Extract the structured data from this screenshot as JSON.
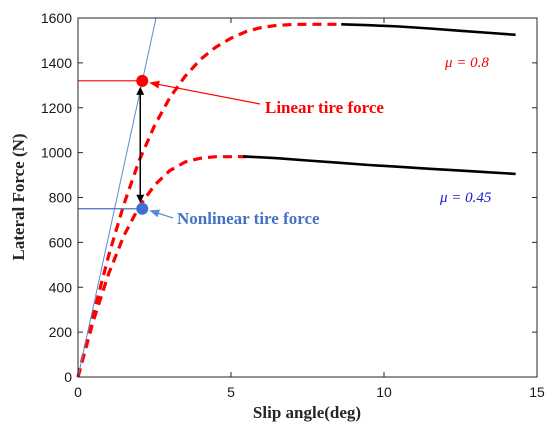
{
  "chart_data": {
    "type": "line",
    "title": "",
    "xlabel": "Slip angle(deg)",
    "ylabel": "Lateral Force (N)",
    "xlim": [
      0,
      15
    ],
    "ylim": [
      0,
      1600
    ],
    "xticks": [
      0,
      5,
      10,
      15
    ],
    "yticks": [
      0,
      200,
      400,
      600,
      800,
      1000,
      1200,
      1400,
      1600
    ],
    "grid": false,
    "series": [
      {
        "name": "μ = 0.8",
        "color": "#ff0000",
        "style": "dashed",
        "x": [
          0,
          0.5,
          1,
          1.5,
          2,
          2.5,
          3,
          3.5,
          4,
          4.5,
          5,
          5.5,
          6,
          6.5,
          7,
          7.5,
          8,
          8.6
        ],
        "y": [
          0,
          280,
          540,
          770,
          965,
          1120,
          1245,
          1340,
          1415,
          1470,
          1510,
          1540,
          1558,
          1567,
          1571,
          1572,
          1572,
          1572
        ]
      },
      {
        "name": "",
        "color": "#000000",
        "style": "solid",
        "x": [
          8.6,
          9.5,
          10.5,
          11.5,
          12.5,
          13.5,
          14.3
        ],
        "y": [
          1572,
          1568,
          1562,
          1553,
          1543,
          1533,
          1525
        ]
      },
      {
        "name": "μ = 0.45",
        "color": "#ff0000",
        "style": "dashed",
        "x": [
          0,
          0.5,
          1,
          1.5,
          2,
          2.5,
          3,
          3.5,
          4,
          4.5,
          5,
          5.5
        ],
        "y": [
          0,
          250,
          460,
          630,
          760,
          855,
          920,
          958,
          975,
          982,
          982,
          982
        ]
      },
      {
        "name": "",
        "color": "#000000",
        "style": "solid",
        "x": [
          5.4,
          6.5,
          7.5,
          8.5,
          9.5,
          10.5,
          11.5,
          12.5,
          13.5,
          14.3
        ],
        "y": [
          983,
          975,
          965,
          955,
          945,
          937,
          928,
          920,
          912,
          905
        ]
      },
      {
        "name": "",
        "color": "#5b8bd4",
        "style": "solid",
        "x": [
          0,
          2.55
        ],
        "y": [
          0,
          1600
        ]
      }
    ],
    "points": [
      {
        "label": "Linear tire force",
        "x": 2.1,
        "y": 1320,
        "color": "#ff0000"
      },
      {
        "label": "Nonlinear tire force",
        "x": 2.1,
        "y": 750,
        "color": "#3f6fd1"
      }
    ],
    "annotations": {
      "linear_label": "Linear tire force",
      "nonlinear_label": "Nonlinear tire force",
      "mu_high": "μ = 0.8",
      "mu_low": "μ = 0.45"
    }
  }
}
